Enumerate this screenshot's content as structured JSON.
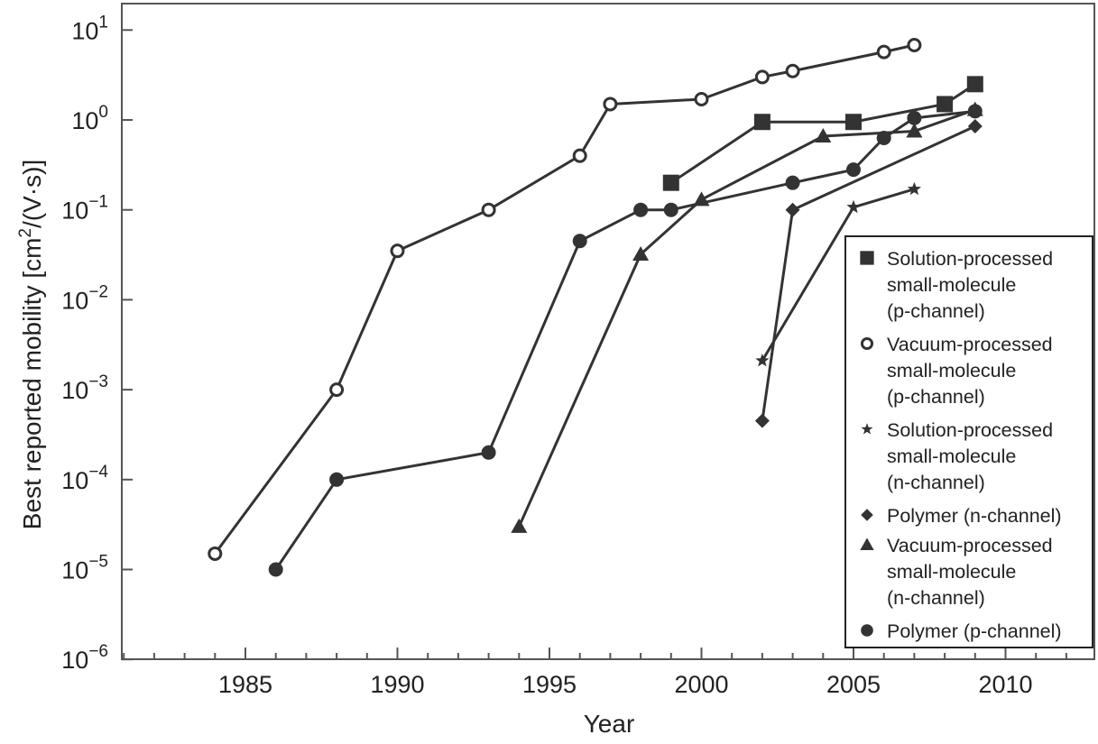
{
  "chart_data": {
    "type": "line",
    "title": "",
    "xlabel": "Year",
    "ylabel": "Best reported mobility [cm2/(V·s)]",
    "ylabel_parts": {
      "prefix": "Best reported mobility [cm",
      "sup": "2",
      "suffix": "/(V·s)]"
    },
    "yscale": "log",
    "xlim": [
      1981,
      2013
    ],
    "ylim": [
      1e-06,
      20
    ],
    "grid": false,
    "legend_position": "lower right (inside)",
    "x_ticks": [
      1985,
      1990,
      1995,
      2000,
      2005,
      2010
    ],
    "x_minor_tick_step": 1,
    "y_ticks": [
      {
        "base": "10",
        "exp": "1",
        "value": 10
      },
      {
        "base": "10",
        "exp": "0",
        "value": 1
      },
      {
        "base": "10",
        "exp": "−1",
        "value": 0.1
      },
      {
        "base": "10",
        "exp": "−2",
        "value": 0.01
      },
      {
        "base": "10",
        "exp": "−3",
        "value": 0.001
      },
      {
        "base": "10",
        "exp": "−4",
        "value": 0.0001
      },
      {
        "base": "10",
        "exp": "−5",
        "value": 1e-05
      },
      {
        "base": "10",
        "exp": "−6",
        "value": 1e-06
      }
    ],
    "series": [
      {
        "name": "Solution-processed small-molecule (p-channel)",
        "legend_lines": [
          "Solution-processed",
          "small-molecule",
          "(p-channel)"
        ],
        "marker": "square",
        "x": [
          1999,
          2002,
          2005,
          2008,
          2009
        ],
        "values": [
          0.2,
          0.95,
          0.95,
          1.5,
          2.5
        ]
      },
      {
        "name": "Vacuum-processed small-molecule (p-channel)",
        "legend_lines": [
          "Vacuum-processed",
          "small-molecule",
          "(p-channel)"
        ],
        "marker": "open-circle",
        "x": [
          1984,
          1988,
          1990,
          1993,
          1996,
          1997,
          2000,
          2002,
          2003,
          2006,
          2007
        ],
        "values": [
          1.5e-05,
          0.001,
          0.035,
          0.1,
          0.4,
          1.5,
          1.7,
          3.0,
          3.5,
          5.7,
          6.8
        ]
      },
      {
        "name": "Solution-processed small-molecule (n-channel)",
        "legend_lines": [
          "Solution-processed",
          "small-molecule",
          "(n-channel)"
        ],
        "marker": "star",
        "x": [
          2002,
          2005,
          2007
        ],
        "values": [
          0.0021,
          0.107,
          0.17
        ]
      },
      {
        "name": "Polymer (n-channel)",
        "legend_lines": [
          "Polymer (n-channel)"
        ],
        "marker": "diamond",
        "x": [
          2002,
          2003,
          2009
        ],
        "values": [
          0.00045,
          0.1,
          0.85
        ]
      },
      {
        "name": "Vacuum-processed small-molecule (n-channel)",
        "legend_lines": [
          "Vacuum-processed",
          "small-molecule",
          "(n-channel)"
        ],
        "marker": "triangle",
        "x": [
          1994,
          1998,
          2000,
          2004,
          2007,
          2009
        ],
        "values": [
          3e-05,
          0.032,
          0.13,
          0.66,
          0.75,
          1.3
        ]
      },
      {
        "name": "Polymer (p-channel)",
        "legend_lines": [
          "Polymer (p-channel)"
        ],
        "marker": "filled-circle",
        "x": [
          1986,
          1988,
          1993,
          1996,
          1998,
          1999,
          2003,
          2005,
          2006,
          2007,
          2009
        ],
        "values": [
          1e-05,
          0.0001,
          0.0002,
          0.045,
          0.1,
          0.1,
          0.2,
          0.28,
          0.63,
          1.05,
          1.25
        ]
      }
    ],
    "colors": {
      "line": "#333333",
      "marker": "#333333",
      "axis": "#555555",
      "background": "#ffffff"
    }
  }
}
